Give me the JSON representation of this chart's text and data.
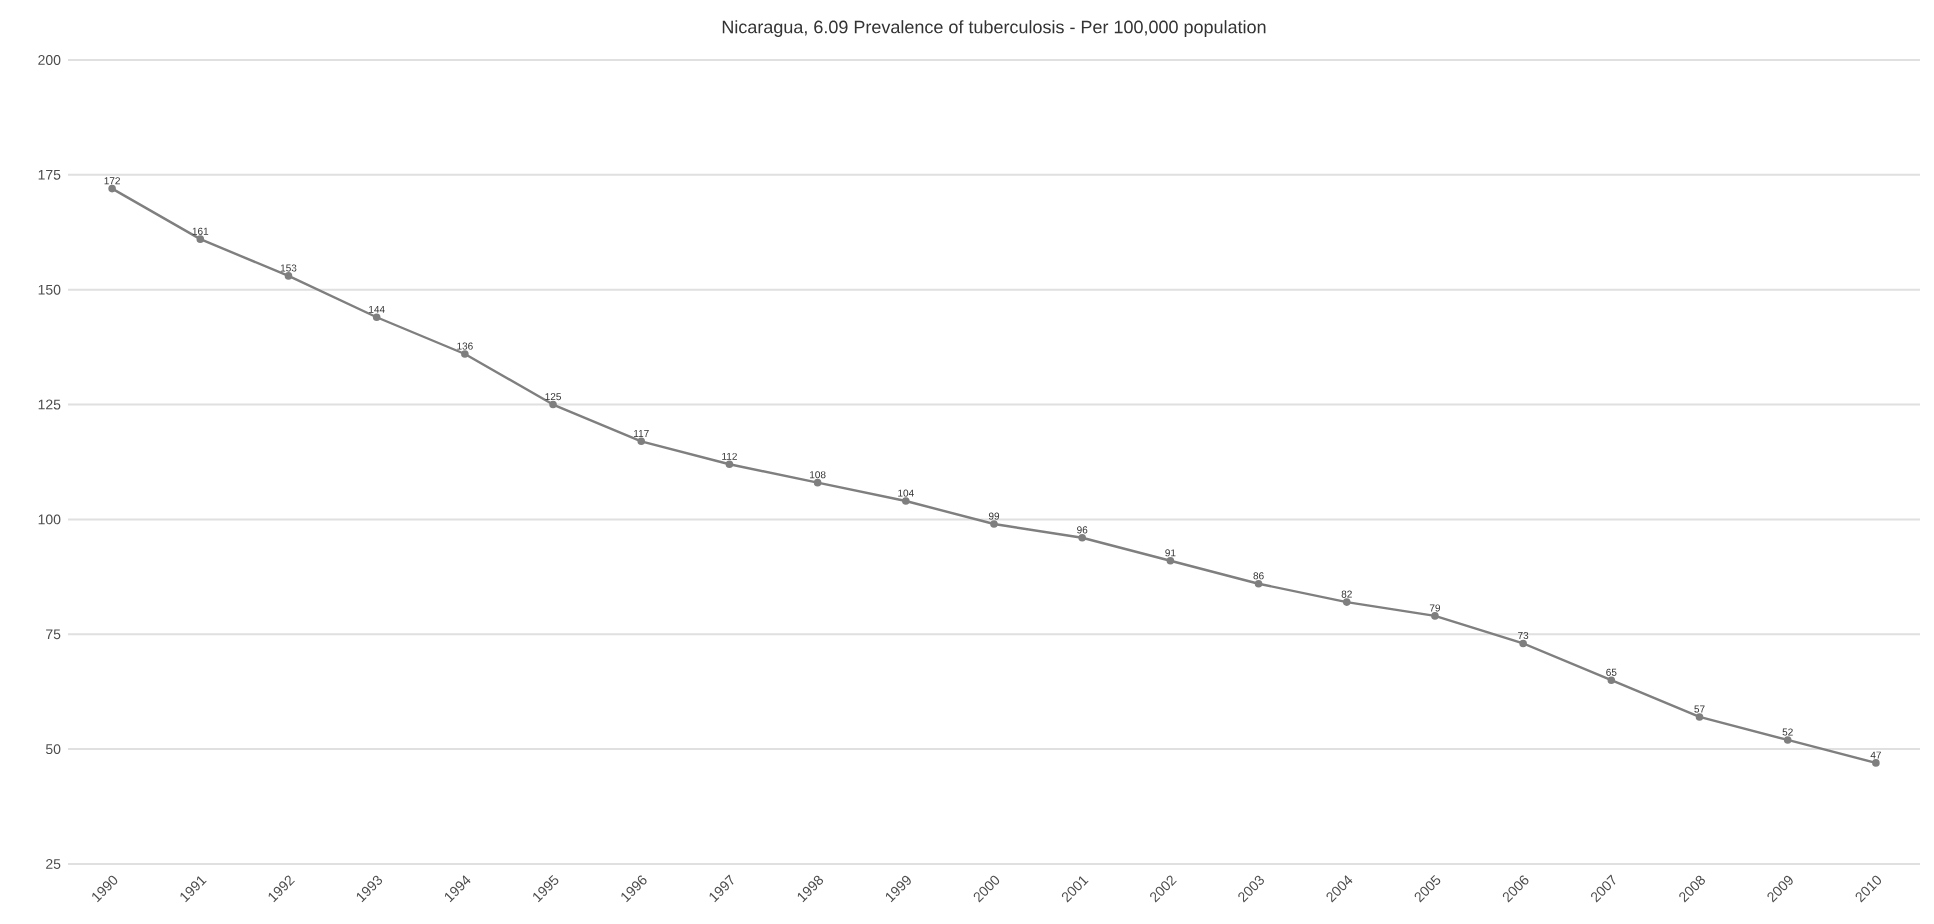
{
  "chart_data": {
    "type": "line",
    "title": "Nicaragua, 6.09 Prevalence of tuberculosis - Per 100,000 population",
    "categories": [
      "1990",
      "1991",
      "1992",
      "1993",
      "1994",
      "1995",
      "1996",
      "1997",
      "1998",
      "1999",
      "2000",
      "2001",
      "2002",
      "2003",
      "2004",
      "2005",
      "2006",
      "2007",
      "2008",
      "2009",
      "2010"
    ],
    "series": [
      {
        "color": "#7f7f7f",
        "values": [
          172,
          161,
          153,
          144,
          136,
          125,
          117,
          112,
          108,
          104,
          99,
          96,
          91,
          86,
          82,
          79,
          73,
          65,
          57,
          52,
          47
        ]
      }
    ],
    "ylim": [
      25,
      200
    ],
    "yticks": [
      25,
      50,
      75,
      100,
      125,
      150,
      175,
      200
    ],
    "grid": "y",
    "marker": "circle",
    "line_style": "solid",
    "data_labels": true
  }
}
